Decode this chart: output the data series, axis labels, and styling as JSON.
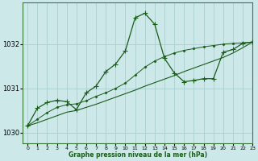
{
  "background_color": "#cce8e8",
  "grid_color": "#aacfcf",
  "line_color": "#1a5c1a",
  "xlabel": "Graphe pression niveau de la mer (hPa)",
  "ylim": [
    1029.75,
    1032.95
  ],
  "xlim": [
    -0.5,
    23
  ],
  "yticks": [
    1030,
    1031,
    1032
  ],
  "xticks": [
    0,
    1,
    2,
    3,
    4,
    5,
    6,
    7,
    8,
    9,
    10,
    11,
    12,
    13,
    14,
    15,
    16,
    17,
    18,
    19,
    20,
    21,
    22,
    23
  ],
  "hours": [
    0,
    1,
    2,
    3,
    4,
    5,
    6,
    7,
    8,
    9,
    10,
    11,
    12,
    13,
    14,
    15,
    16,
    17,
    18,
    19,
    20,
    21,
    22,
    23
  ],
  "pressure_main": [
    1030.15,
    1030.55,
    1030.68,
    1030.73,
    1030.7,
    1030.52,
    1030.9,
    1031.05,
    1031.38,
    1031.55,
    1031.85,
    1032.6,
    1032.7,
    1032.45,
    1031.68,
    1031.35,
    1031.15,
    1031.18,
    1031.22,
    1031.22,
    1031.82,
    1031.88,
    1032.02,
    1032.05
  ],
  "pressure_smooth": [
    1030.15,
    1030.3,
    1030.45,
    1030.57,
    1030.63,
    1030.65,
    1030.72,
    1030.82,
    1030.9,
    1031.0,
    1031.12,
    1031.3,
    1031.48,
    1031.62,
    1031.72,
    1031.8,
    1031.86,
    1031.9,
    1031.94,
    1031.97,
    1032.0,
    1032.02,
    1032.03,
    1032.05
  ],
  "pressure_linear": [
    1030.15,
    1030.22,
    1030.3,
    1030.38,
    1030.46,
    1030.5,
    1030.57,
    1030.64,
    1030.72,
    1030.8,
    1030.88,
    1030.96,
    1031.05,
    1031.13,
    1031.21,
    1031.29,
    1031.38,
    1031.46,
    1031.54,
    1031.62,
    1031.7,
    1031.8,
    1031.92,
    1032.05
  ]
}
